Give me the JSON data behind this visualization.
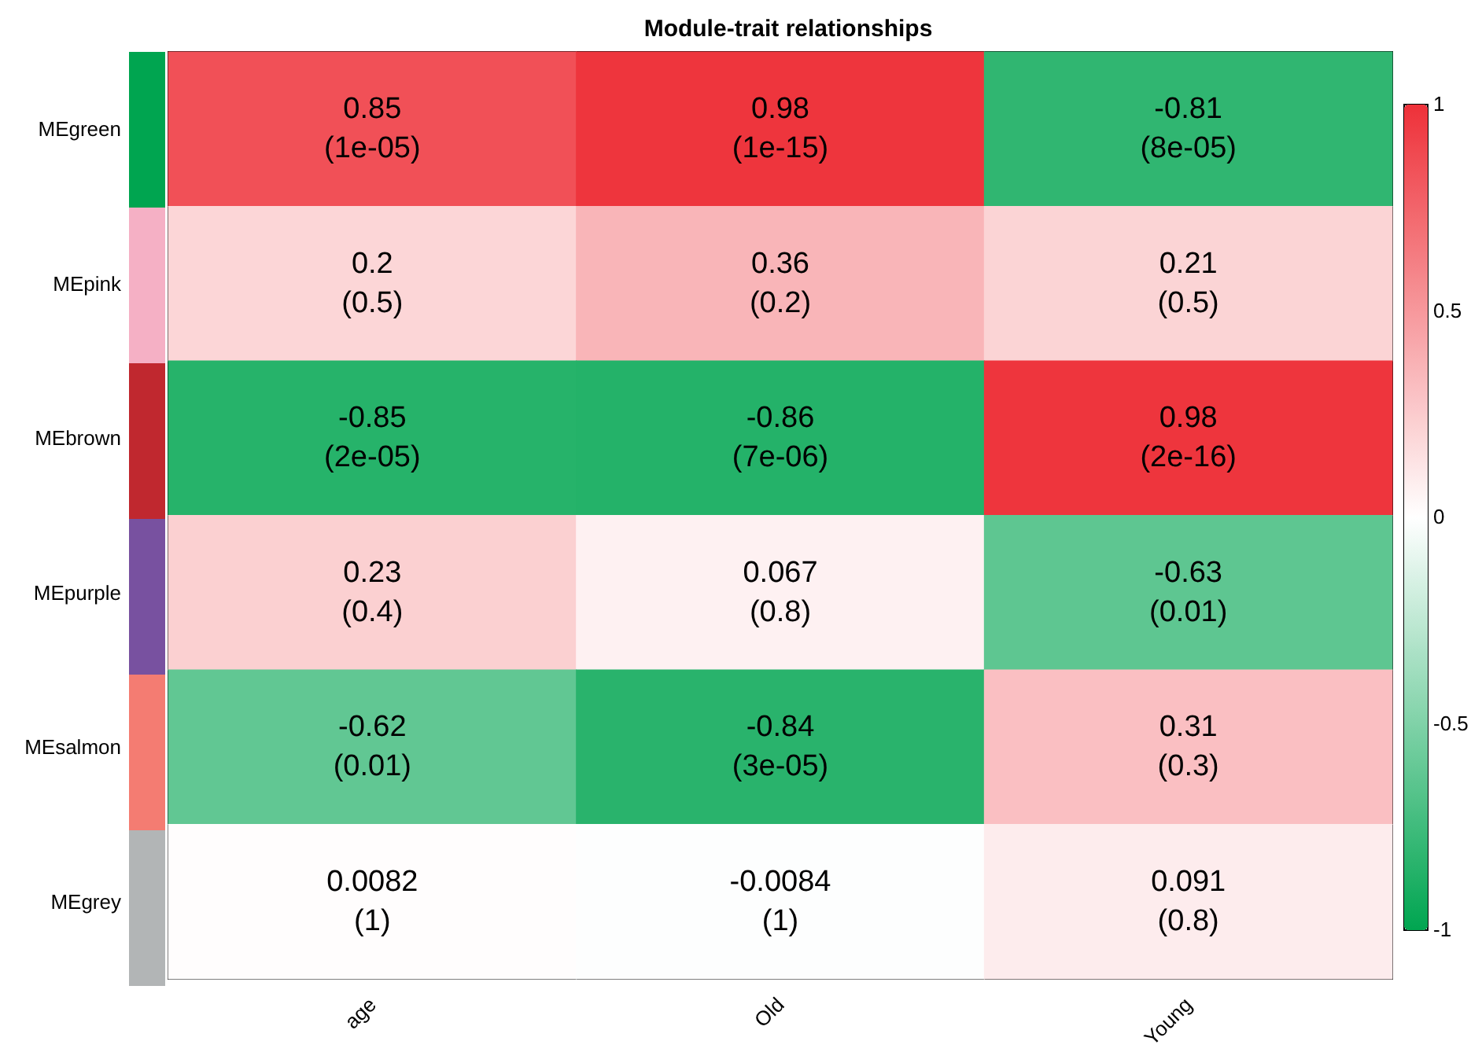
{
  "chart_data": {
    "type": "heatmap",
    "title": "Module-trait relationships",
    "categories": [
      "age",
      "Old",
      "Young"
    ],
    "y_categories": [
      "MEgreen",
      "MEpink",
      "MEbrown",
      "MEpurple",
      "MEsalmon",
      "MEgrey"
    ],
    "cells": [
      [
        0.85,
        0.98,
        -0.81
      ],
      [
        0.2,
        0.36,
        0.21
      ],
      [
        -0.85,
        -0.86,
        0.98
      ],
      [
        0.23,
        0.067,
        -0.63
      ],
      [
        -0.62,
        -0.84,
        0.31
      ],
      [
        0.0082,
        -0.0084,
        0.091
      ]
    ],
    "cell_labels": [
      [
        "0.85\n(1e-05)",
        "0.98\n(1e-15)",
        "-0.81\n(8e-05)"
      ],
      [
        "0.2\n(0.5)",
        "0.36\n(0.2)",
        "0.21\n(0.5)"
      ],
      [
        "-0.85\n(2e-05)",
        "-0.86\n(7e-06)",
        "0.98\n(2e-16)"
      ],
      [
        "0.23\n(0.4)",
        "0.067\n(0.8)",
        "-0.63\n(0.01)"
      ],
      [
        "-0.62\n(0.01)",
        "-0.84\n(3e-05)",
        "0.31\n(0.3)"
      ],
      [
        "0.0082\n(1)",
        "-0.0084\n(1)",
        "0.091\n(0.8)"
      ]
    ],
    "clim": [
      -1,
      1
    ],
    "cticks": [
      -1,
      -0.5,
      0,
      0.5,
      1
    ]
  }
}
